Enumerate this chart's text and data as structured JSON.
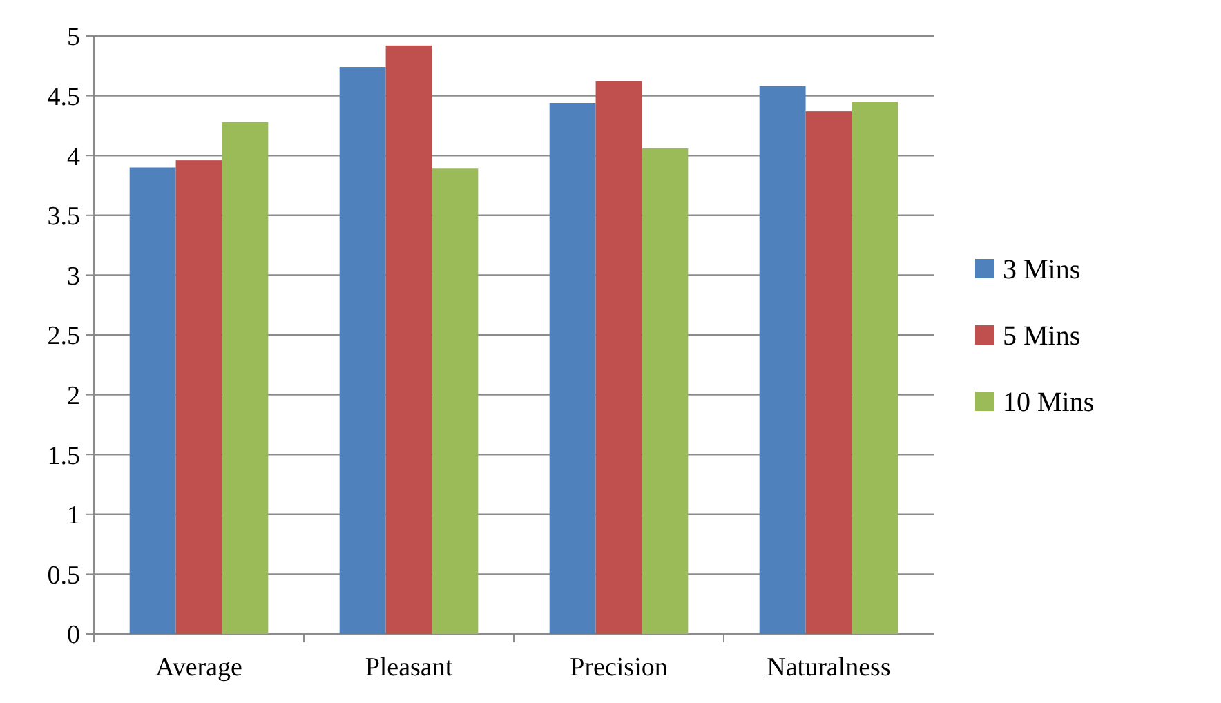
{
  "chart_data": {
    "type": "bar",
    "categories": [
      "Average",
      "Pleasant",
      "Precision",
      "Naturalness"
    ],
    "series": [
      {
        "name": "3 Mins",
        "color": "#4f81bd",
        "values": [
          3.9,
          4.74,
          4.44,
          4.58
        ]
      },
      {
        "name": "5 Mins",
        "color": "#c0504d",
        "values": [
          3.96,
          4.92,
          4.62,
          4.37
        ]
      },
      {
        "name": "10 Mins",
        "color": "#9bbb59",
        "values": [
          4.28,
          3.89,
          4.06,
          4.45
        ]
      }
    ],
    "ylim": [
      0,
      5
    ],
    "yticks": [
      0,
      0.5,
      1,
      1.5,
      2,
      2.5,
      3,
      3.5,
      4,
      4.5,
      5
    ],
    "grid": "y",
    "legend": "right"
  }
}
